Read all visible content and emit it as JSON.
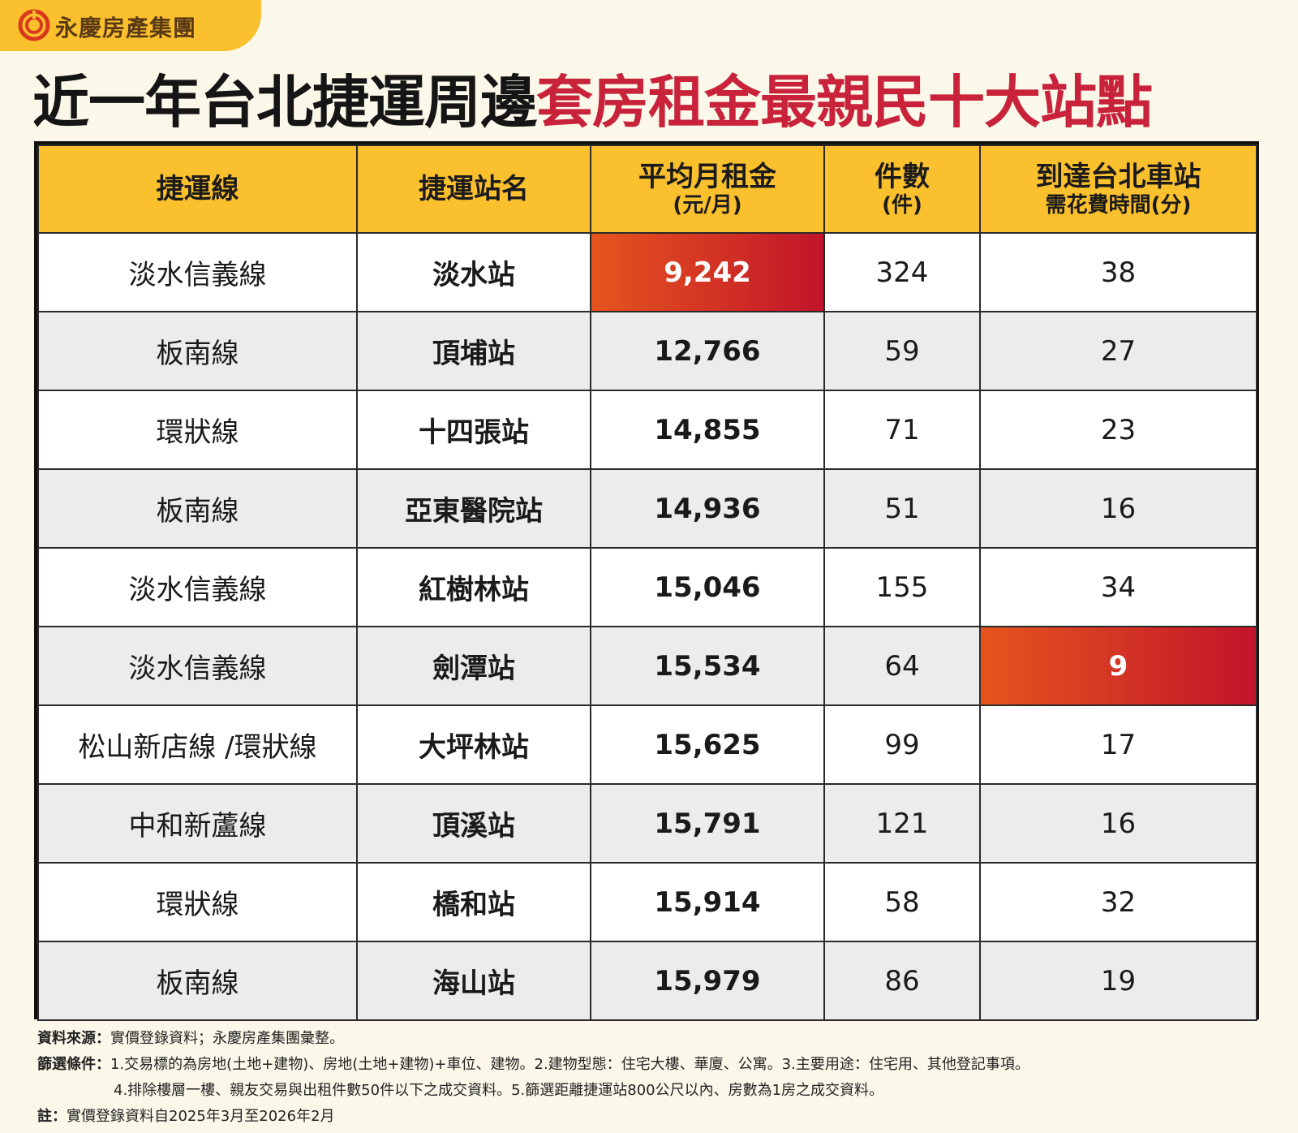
{
  "brand": {
    "logo_icon": "brand-logo-icon",
    "name": "永慶房產集團",
    "color": "#fbc02d"
  },
  "headline": {
    "part1": "近一年台北捷運周邊",
    "part2": "套房租金最親民十大站點",
    "part1_color": "#151515",
    "part2_color": "#c8233b"
  },
  "table": {
    "headers": [
      {
        "main": "捷運線",
        "sub": ""
      },
      {
        "main": "捷運站名",
        "sub": ""
      },
      {
        "main": "平均月租金",
        "sub": "(元/月)"
      },
      {
        "main": "件數",
        "sub": "(件)"
      },
      {
        "main": "到達台北車站",
        "sub": "需花費時間(分)"
      }
    ],
    "rows": [
      {
        "line": "淡水信義線",
        "station": "淡水站",
        "rent": "9,242",
        "count": "324",
        "minutes": "38"
      },
      {
        "line": "板南線",
        "station": "頂埔站",
        "rent": "12,766",
        "count": "59",
        "minutes": "27"
      },
      {
        "line": "環狀線",
        "station": "十四張站",
        "rent": "14,855",
        "count": "71",
        "minutes": "23"
      },
      {
        "line": "板南線",
        "station": "亞東醫院站",
        "rent": "14,936",
        "count": "51",
        "minutes": "16"
      },
      {
        "line": "淡水信義線",
        "station": "紅樹林站",
        "rent": "15,046",
        "count": "155",
        "minutes": "34"
      },
      {
        "line": "淡水信義線",
        "station": "劍潭站",
        "rent": "15,534",
        "count": "64",
        "minutes": "9"
      },
      {
        "line": "松山新店線 /環狀線",
        "station": "大坪林站",
        "rent": "15,625",
        "count": "99",
        "minutes": "17"
      },
      {
        "line": "中和新蘆線",
        "station": "頂溪站",
        "rent": "15,791",
        "count": "121",
        "minutes": "16"
      },
      {
        "line": "環狀線",
        "station": "橋和站",
        "rent": "15,914",
        "count": "58",
        "minutes": "32"
      },
      {
        "line": "板南線",
        "station": "海山站",
        "rent": "15,979",
        "count": "86",
        "minutes": "19"
      }
    ],
    "highlight_colors": [
      "#e5551e",
      "#c2142a"
    ]
  },
  "notes": {
    "source_label": "資料來源：",
    "source_text": "實價登錄資料；永慶房產集團彙整。",
    "filter_label": "篩選條件：",
    "filter_text_1": "1.交易標的為房地(土地+建物)、房地(土地+建物)+車位、建物。2.建物型態：住宅大樓、華廈、公寓。3.主要用途：住宅用、其他登記事項。",
    "filter_text_2": "4.排除樓層一樓、親友交易與出租件數50件以下之成交資料。5.篩選距離捷運站800公尺以內、房數為1房之成交資料。",
    "note_label": "註：",
    "note_text": "實價登錄資料自2025年3月至2026年2月"
  }
}
